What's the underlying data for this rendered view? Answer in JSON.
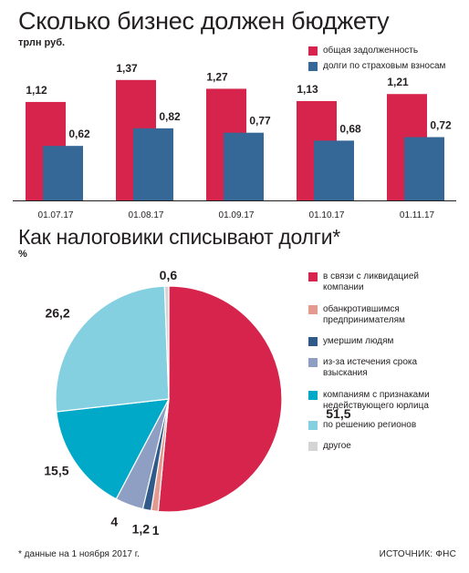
{
  "chart_data": [
    {
      "type": "bar",
      "title": "Сколько бизнес должен бюджету",
      "unit": "трлн руб.",
      "categories": [
        "01.07.17",
        "01.08.17",
        "01.09.17",
        "01.10.17",
        "01.11.17"
      ],
      "series": [
        {
          "name": "общая задолженность",
          "color": "#d6244d",
          "values": [
            1.12,
            1.37,
            1.27,
            1.13,
            1.21
          ]
        },
        {
          "name": "долги по страховым взносам",
          "color": "#356797",
          "values": [
            0.62,
            0.82,
            0.77,
            0.68,
            0.72
          ]
        }
      ],
      "legend_position": "top-right",
      "grid": false
    },
    {
      "type": "pie",
      "title": "Как налоговики списывают долги*",
      "unit": "%",
      "slices": [
        {
          "label": "в связи с ликвидацией компании",
          "value": 51.5,
          "display": "51,5",
          "color": "#d6244d"
        },
        {
          "label": "обанкротившимся предпринимателям",
          "value": 1,
          "display": "1",
          "color": "#e59a90"
        },
        {
          "label": "умершим людям",
          "value": 1.2,
          "display": "1,2",
          "color": "#2f5a8a"
        },
        {
          "label": "из-за истечения срока взыскания",
          "value": 4,
          "display": "4",
          "color": "#8e9fc3"
        },
        {
          "label": "компаниям с признаками недействующего юрлица",
          "value": 15.5,
          "display": "15,5",
          "color": "#00a9c7"
        },
        {
          "label": "по решению регионов",
          "value": 26.2,
          "display": "26,2",
          "color": "#85d0e0"
        },
        {
          "label": "другое",
          "value": 0.6,
          "display": "0,6",
          "color": "#d4d4d4"
        }
      ],
      "legend_position": "right"
    }
  ],
  "footnote": "* данные на 1 ноября 2017 г.",
  "source": "ИСТОЧНИК: ФНС"
}
